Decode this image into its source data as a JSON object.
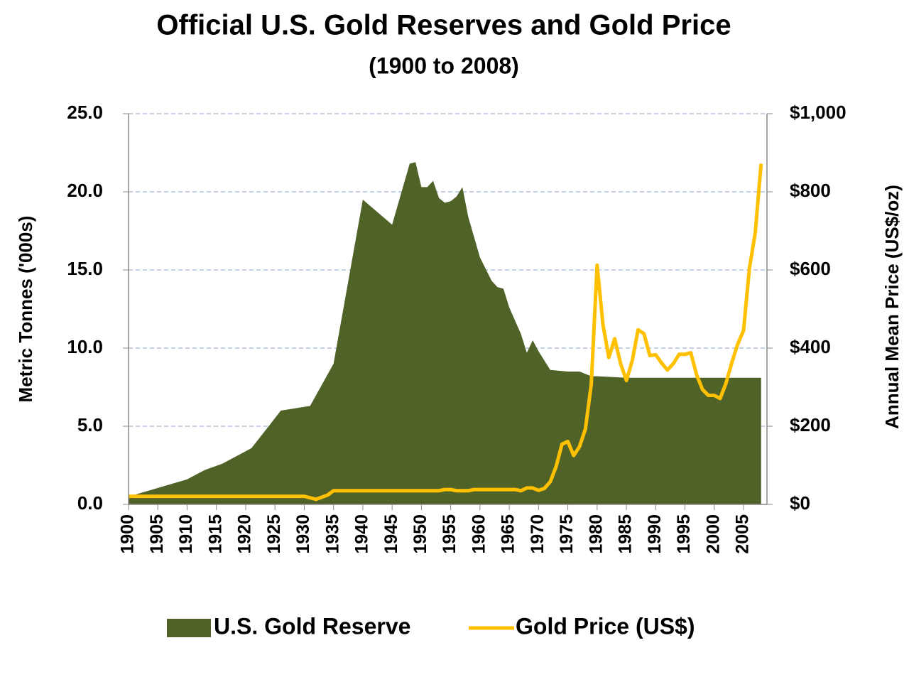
{
  "chart_data": {
    "type": "area-line",
    "title": "Official U.S. Gold Reserves and Gold Price",
    "subtitle": "(1900 to 2008)",
    "y_label": "Metric Tonnes ('000s)",
    "y2_label": "Annual Mean Price (US$/oz)",
    "xlim": [
      1900,
      2009
    ],
    "xticks": [
      1900,
      1905,
      1910,
      1915,
      1920,
      1925,
      1930,
      1935,
      1940,
      1945,
      1950,
      1955,
      1960,
      1965,
      1970,
      1975,
      1980,
      1985,
      1990,
      1995,
      2000,
      2005
    ],
    "ylim": [
      0,
      25
    ],
    "yticks": [
      {
        "value": 0,
        "label": "0.0"
      },
      {
        "value": 5,
        "label": "5.0"
      },
      {
        "value": 10,
        "label": "10.0"
      },
      {
        "value": 15,
        "label": "15.0"
      },
      {
        "value": 20,
        "label": "20.0"
      },
      {
        "value": 25,
        "label": "25.0"
      }
    ],
    "y2lim": [
      0,
      1000
    ],
    "y2ticks": [
      {
        "value": 0,
        "label": "$0"
      },
      {
        "value": 200,
        "label": "$200"
      },
      {
        "value": 400,
        "label": "$400"
      },
      {
        "value": 600,
        "label": "$600"
      },
      {
        "value": 800,
        "label": "$800"
      },
      {
        "value": 1000,
        "label": "$1,000"
      }
    ],
    "grid": true,
    "legend": "bottom",
    "series": [
      {
        "name": "U.S. Gold Reserve",
        "color": "#4f6228",
        "kind": "area",
        "x": [
          1900,
          1910,
          1913,
          1916,
          1921,
          1926,
          1931,
          1935,
          1940,
          1945,
          1948,
          1949,
          1950,
          1951,
          1952,
          1953,
          1954,
          1955,
          1956,
          1957,
          1958,
          1960,
          1962,
          1963,
          1964,
          1965,
          1967,
          1968,
          1969,
          1970,
          1971,
          1972,
          1975,
          1977,
          1979,
          1980,
          1985,
          1990,
          2000,
          2008
        ],
        "values": [
          0.5,
          1.6,
          2.2,
          2.6,
          3.6,
          6.0,
          6.3,
          9.0,
          19.5,
          17.9,
          21.8,
          21.9,
          20.3,
          20.3,
          20.7,
          19.6,
          19.3,
          19.4,
          19.7,
          20.3,
          18.4,
          15.8,
          14.3,
          13.9,
          13.8,
          12.6,
          10.9,
          9.7,
          10.5,
          9.8,
          9.2,
          8.6,
          8.5,
          8.5,
          8.2,
          8.2,
          8.1,
          8.1,
          8.1,
          8.1
        ]
      },
      {
        "name": "Gold Price (US$)",
        "color": "#ffc000",
        "kind": "line",
        "axis": "y2",
        "x": [
          1900,
          1930,
          1931,
          1932,
          1934,
          1935,
          1953,
          1954,
          1955,
          1956,
          1958,
          1959,
          1960,
          1966,
          1967,
          1968,
          1969,
          1970,
          1971,
          1972,
          1973,
          1974,
          1975,
          1976,
          1977,
          1978,
          1979,
          1980,
          1981,
          1982,
          1983,
          1984,
          1985,
          1986,
          1987,
          1988,
          1989,
          1990,
          1991,
          1992,
          1993,
          1994,
          1995,
          1996,
          1997,
          1998,
          1999,
          2000,
          2001,
          2002,
          2003,
          2004,
          2005,
          2006,
          2007,
          2008
        ],
        "values": [
          20.7,
          20.7,
          17,
          13,
          24,
          35,
          35,
          38,
          38,
          35,
          35,
          38,
          38,
          38,
          35,
          42,
          42,
          36,
          41,
          58,
          97,
          154,
          161,
          125,
          148,
          193,
          307,
          612,
          460,
          376,
          424,
          361,
          317,
          368,
          447,
          437,
          381,
          383,
          362,
          344,
          360,
          384,
          384,
          388,
          331,
          294,
          279,
          279,
          271,
          310,
          363,
          410,
          445,
          604,
          695,
          872
        ]
      }
    ]
  }
}
